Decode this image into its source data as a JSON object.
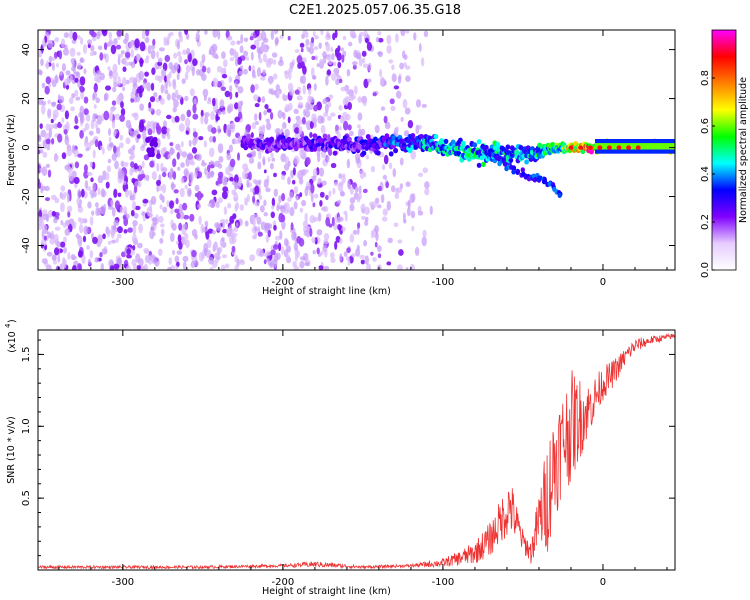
{
  "title": "C2E1.2025.057.06.35.G18",
  "chart_data": [
    {
      "type": "heatmap",
      "xlabel": "Height of straight line (km)",
      "ylabel": "Frequency (Hz)",
      "xlim": [
        -353,
        45
      ],
      "ylim": [
        -50,
        48
      ],
      "xticks": [
        -300,
        -200,
        -100,
        0
      ],
      "xtick_labels": [
        "-300",
        "-200",
        "-100",
        "0"
      ],
      "yticks": [
        -40,
        -20,
        0,
        20,
        40
      ],
      "ytick_labels": [
        "-40",
        "-20",
        "0",
        "20",
        "40"
      ],
      "colorbar": {
        "label": "Normalized spectral amplitude",
        "range": [
          0,
          1
        ],
        "ticks": [
          0.0,
          0.2,
          0.4,
          0.6,
          0.8
        ],
        "tick_labels": [
          "0.0",
          "0.2",
          "0.4",
          "0.6",
          "0.8"
        ],
        "colors": [
          "#ffffff",
          "#e6ccff",
          "#8000ff",
          "#0000ff",
          "#00ffff",
          "#00ff00",
          "#ffff00",
          "#ff8000",
          "#ff0000",
          "#ff00ff"
        ]
      },
      "features": {
        "noise_region_km": [
          -353,
          -120
        ],
        "signal_band": [
          {
            "x": -225,
            "freq": 2,
            "width": 6,
            "amp": 0.25
          },
          {
            "x": -150,
            "freq": 1,
            "width": 8,
            "amp": 0.3
          },
          {
            "x": -110,
            "freq": 2,
            "width": 8,
            "amp": 0.45
          },
          {
            "x": -80,
            "freq": -2,
            "width": 10,
            "amp": 0.5
          },
          {
            "x": -50,
            "freq": -3,
            "width": 8,
            "amp": 0.45
          },
          {
            "x": -30,
            "freq": 0,
            "width": 4,
            "amp": 0.55
          },
          {
            "x": -10,
            "freq": 0,
            "width": 4,
            "amp": 0.85
          },
          {
            "x": 10,
            "freq": 1,
            "width": 3,
            "amp": 0.95
          },
          {
            "x": 45,
            "freq": 0,
            "width": 3,
            "amp": 0.6
          }
        ],
        "descending_branch": [
          {
            "x": -75,
            "freq": 0
          },
          {
            "x": -55,
            "freq": -10
          },
          {
            "x": -35,
            "freq": -14
          },
          {
            "x": -26,
            "freq": -20
          }
        ]
      }
    },
    {
      "type": "line",
      "xlabel": "Height of straight line (km)",
      "ylabel": "SNR (10 * v/v)",
      "y_multiplier": "(x10",
      "y_multiplier_exp": "4",
      "y_multiplier_close": ")",
      "xlim": [
        -353,
        45
      ],
      "ylim": [
        0,
        1.67
      ],
      "xticks": [
        -300,
        -200,
        -100,
        0
      ],
      "xtick_labels": [
        "-300",
        "-200",
        "-100",
        "0"
      ],
      "yticks": [
        0.5,
        1.0,
        1.5
      ],
      "ytick_labels": [
        "0.5",
        "1.0",
        "1.5"
      ],
      "color": "#ee3333",
      "series": [
        {
          "x": [
            -353,
            -300,
            -250,
            -200,
            -180,
            -150,
            -120,
            -100,
            -90,
            -80,
            -70,
            -65,
            -58,
            -50,
            -45,
            -40,
            -35,
            -30,
            -25,
            -20,
            -15,
            -10,
            -5,
            0,
            5,
            10,
            15,
            20,
            30,
            40,
            45
          ],
          "y": [
            0.02,
            0.02,
            0.02,
            0.03,
            0.04,
            0.02,
            0.03,
            0.05,
            0.08,
            0.12,
            0.22,
            0.32,
            0.45,
            0.2,
            0.12,
            0.35,
            0.5,
            0.75,
            0.9,
            1.0,
            1.05,
            1.1,
            1.2,
            1.3,
            1.35,
            1.42,
            1.5,
            1.56,
            1.6,
            1.62,
            1.63
          ],
          "spread": [
            0.01,
            0.01,
            0.01,
            0.01,
            0.02,
            0.01,
            0.01,
            0.03,
            0.05,
            0.08,
            0.12,
            0.15,
            0.2,
            0.08,
            0.08,
            0.2,
            0.4,
            0.4,
            0.35,
            0.4,
            0.3,
            0.2,
            0.15,
            0.12,
            0.1,
            0.08,
            0.06,
            0.05,
            0.03,
            0.02,
            0.02
          ]
        }
      ]
    }
  ]
}
